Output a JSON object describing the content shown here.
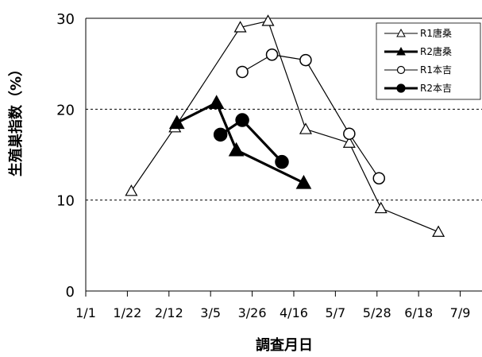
{
  "chart_data": {
    "type": "line",
    "title": "",
    "xlabel": "調査月日",
    "ylabel": "生殖巣指数（%）",
    "x_ticks": [
      "1/1",
      "1/22",
      "2/12",
      "3/5",
      "3/26",
      "4/16",
      "5/7",
      "5/28",
      "6/18",
      "7/9"
    ],
    "x_tick_days": [
      0,
      21,
      42,
      63,
      84,
      105,
      126,
      147,
      168,
      189
    ],
    "xlim": [
      0,
      200
    ],
    "ylim": [
      0,
      30
    ],
    "y_ticks": [
      0,
      10,
      20,
      30
    ],
    "dashed_gridlines": [
      10,
      20
    ],
    "legend_position": "top-right",
    "series": [
      {
        "name": "R1唐桑",
        "marker": "triangle-open",
        "line": "thin",
        "x": [
          "1/24",
          "2/15",
          "3/20",
          "4/3",
          "4/22",
          "5/14",
          "5/30",
          "6/28"
        ],
        "y": [
          11,
          18,
          29,
          29.7,
          17.8,
          16.3,
          9.1,
          6.5
        ]
      },
      {
        "name": "R2唐桑",
        "marker": "triangle-filled",
        "line": "thick",
        "x": [
          "2/16",
          "3/8",
          "3/18",
          "4/21"
        ],
        "y": [
          18.5,
          20.7,
          15.5,
          11.9
        ]
      },
      {
        "name": "R1本吉",
        "marker": "circle-open",
        "line": "thin",
        "x": [
          "3/21",
          "4/5",
          "4/22",
          "5/14",
          "5/29"
        ],
        "y": [
          24.1,
          26,
          25.4,
          17.3,
          12.4
        ]
      },
      {
        "name": "R2本吉",
        "marker": "circle-filled",
        "line": "thick",
        "x": [
          "3/10",
          "3/21",
          "4/10"
        ],
        "y": [
          17.2,
          18.8,
          14.2
        ]
      }
    ]
  }
}
